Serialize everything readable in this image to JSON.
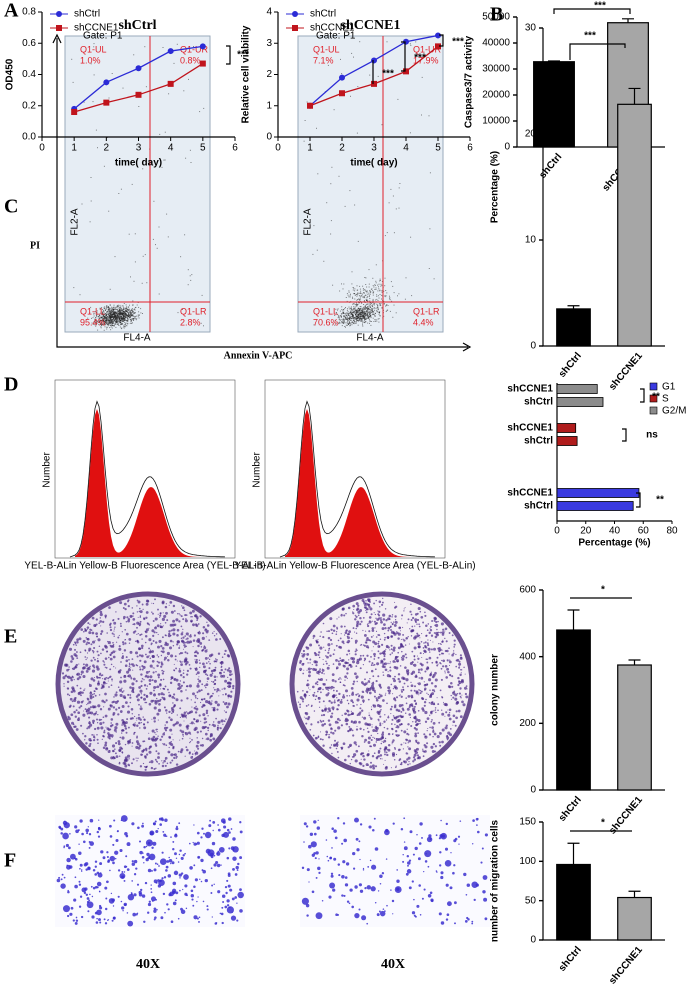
{
  "panel_labels": [
    "A",
    "B",
    "C",
    "D",
    "E",
    "F"
  ],
  "chart_data": [
    {
      "type": "line",
      "ylabel": "OD450",
      "xlabel": "time( day)",
      "x": [
        1,
        2,
        3,
        4,
        5
      ],
      "xlim": [
        0,
        6
      ],
      "xticks": [
        0,
        1,
        2,
        3,
        4,
        5,
        6
      ],
      "ylim": [
        0,
        0.8
      ],
      "yticks": [
        {
          "value": 0,
          "label": "0.0"
        },
        0.2,
        0.4,
        0.6,
        0.8
      ],
      "series": [
        {
          "name": "shCtrl",
          "color": "#2b2bd6",
          "values": [
            0.18,
            0.35,
            0.44,
            0.55,
            0.58
          ]
        },
        {
          "name": "shCCNE1",
          "color": "#c0141c",
          "values": [
            0.16,
            0.22,
            0.27,
            0.34,
            0.47
          ]
        }
      ],
      "annotations": [
        "***"
      ]
    },
    {
      "type": "line",
      "ylabel": "Relative cell viability",
      "xlabel": "time( day)",
      "x": [
        1,
        2,
        3,
        4,
        5
      ],
      "xlim": [
        0,
        6
      ],
      "xticks": [
        0,
        1,
        2,
        3,
        4,
        5,
        6
      ],
      "ylim": [
        0,
        4
      ],
      "yticks": [
        0,
        1,
        2,
        3,
        4
      ],
      "series": [
        {
          "name": "shCtrl",
          "color": "#2b2bd6",
          "values": [
            1,
            1.9,
            2.45,
            3.05,
            3.25
          ]
        },
        {
          "name": "shCCNE1",
          "color": "#c0141c",
          "values": [
            1,
            1.4,
            1.7,
            2.1,
            2.9
          ]
        }
      ],
      "annotations": [
        "***",
        "***",
        "***"
      ]
    },
    {
      "type": "bar",
      "ylabel": "Caspase3/7 activity",
      "categories": [
        "shCtrl",
        "shCCNE1"
      ],
      "values": [
        32800,
        47800
      ],
      "errors": [
        300,
        1500
      ],
      "colors": [
        "#000000",
        "#a6a6a6"
      ],
      "ylim": [
        0,
        50000
      ],
      "yticks": [
        0,
        10000,
        20000,
        30000,
        40000,
        50000
      ],
      "annotations": [
        "***"
      ]
    },
    {
      "type": "bar",
      "ylabel": "Percentage (%)",
      "categories": [
        "shCtrl",
        "shCCNE1"
      ],
      "values": [
        3.5,
        22.8
      ],
      "errors": [
        0.3,
        1.5
      ],
      "colors": [
        "#000000",
        "#a6a6a6"
      ],
      "ylim": [
        0,
        30
      ],
      "yticks": [
        0,
        10,
        20,
        30
      ],
      "annotations": [
        "***"
      ]
    },
    {
      "type": "hbar",
      "xlabel": "Percentage (%)",
      "categories": [
        "shCCNE1",
        "shCtrl"
      ],
      "series": [
        {
          "name": "G1",
          "color": "#3a3ae0",
          "values": [
            57,
            53
          ]
        },
        {
          "name": "S",
          "color": "#b01c1c",
          "values": [
            13,
            14
          ]
        },
        {
          "name": "G2/M",
          "color": "#8c8c8c",
          "values": [
            28,
            32
          ]
        }
      ],
      "xlim": [
        0,
        80
      ],
      "xticks": [
        0,
        20,
        40,
        60,
        80
      ],
      "annotations": [
        "**",
        "ns",
        "**"
      ]
    },
    {
      "type": "bar",
      "ylabel": "colony number",
      "categories": [
        "shCtrl",
        "shCCNE1"
      ],
      "values": [
        480,
        375
      ],
      "errors": [
        60,
        15
      ],
      "colors": [
        "#000000",
        "#a6a6a6"
      ],
      "ylim": [
        0,
        600
      ],
      "yticks": [
        0,
        200,
        400,
        600
      ],
      "annotations": [
        "*"
      ]
    },
    {
      "type": "bar",
      "ylabel": "number of migration cells",
      "categories": [
        "shCtrl",
        "shCCNE1"
      ],
      "values": [
        96,
        54
      ],
      "errors": [
        27,
        8
      ],
      "colors": [
        "#000000",
        "#a6a6a6"
      ],
      "ylim": [
        0,
        150
      ],
      "yticks": [
        0,
        50,
        100,
        150
      ],
      "annotations": [
        "*"
      ]
    }
  ],
  "flow": {
    "plots": [
      {
        "title": "shCtrl",
        "gate": "Gate: P1",
        "quadrants": [
          [
            "Q1-UL",
            "1.0%"
          ],
          [
            "Q1-UR",
            "0.8%"
          ],
          [
            "Q1-LL",
            "95.4%"
          ],
          [
            "Q1-LR",
            "2.8%"
          ]
        ]
      },
      {
        "title": "shCCNE1",
        "gate": "Gate: P1",
        "quadrants": [
          [
            "Q1-UL",
            "7.1%"
          ],
          [
            "Q1-UR",
            "17.9%"
          ],
          [
            "Q1-LL",
            "70.6%"
          ],
          [
            "Q1-LR",
            "4.4%"
          ]
        ]
      }
    ],
    "yaxis": "FL2-A",
    "xaxis": "FL4-A",
    "ylabel": "PI",
    "xlabel": "Annexin V-APC"
  },
  "cycle": {
    "xaxis": "YEL-B-ALin Yellow-B Fluorescence Area (YEL-B-ALin)",
    "yaxis": "Number"
  },
  "migration": {
    "magnification": [
      "40X",
      "40X"
    ]
  }
}
